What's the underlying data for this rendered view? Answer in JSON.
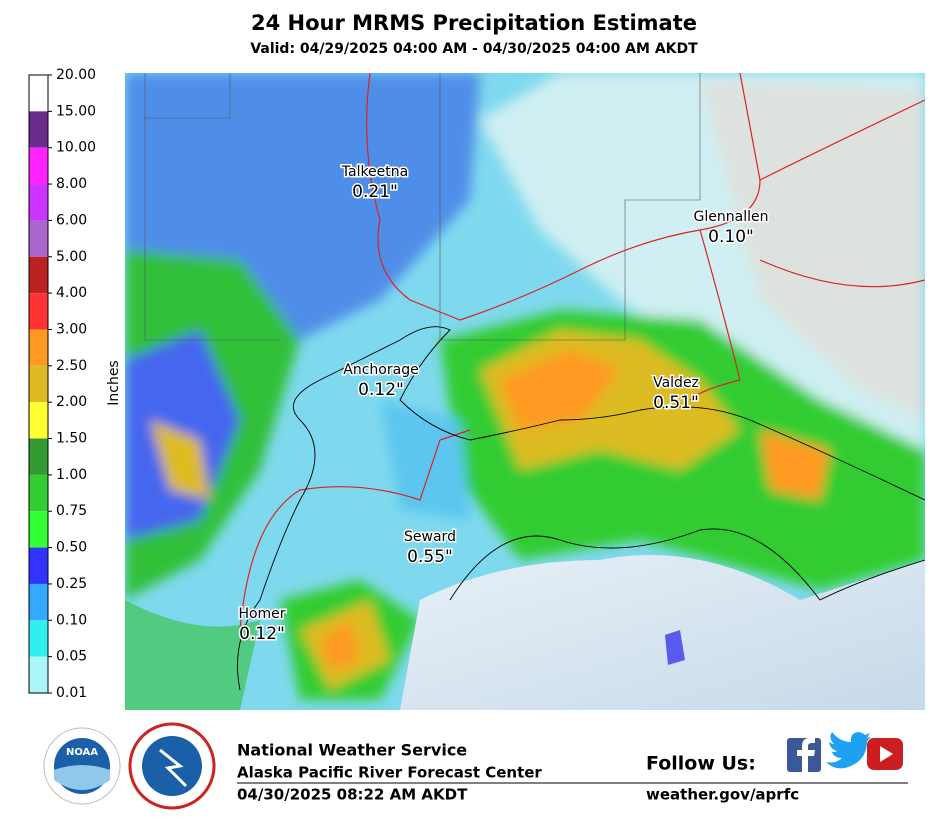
{
  "header": {
    "title": "24 Hour MRMS Precipitation Estimate",
    "subtitle": "Valid: 04/29/2025 04:00 AM - 04/30/2025 04:00 AM AKDT"
  },
  "legend": {
    "title": "Inches",
    "labels": [
      "20.00",
      "15.00",
      "10.00",
      "8.00",
      "6.00",
      "5.00",
      "4.00",
      "3.00",
      "2.50",
      "2.00",
      "1.50",
      "1.00",
      "0.75",
      "0.50",
      "0.25",
      "0.10",
      "0.05",
      "0.01"
    ],
    "colors": [
      "#ffffff",
      "#6a2c8c",
      "#ff22ff",
      "#cc33ff",
      "#aa66cc",
      "#bb2222",
      "#ff3333",
      "#ff9922",
      "#ddbb22",
      "#ffff33",
      "#339933",
      "#33cc33",
      "#33ff33",
      "#3333ff",
      "#33aaff",
      "#33eeee",
      "#aaf5f5"
    ]
  },
  "cities": [
    {
      "name": "Talkeetna",
      "value": "0.21\""
    },
    {
      "name": "Glennallen",
      "value": "0.10\""
    },
    {
      "name": "Anchorage",
      "value": "0.12\""
    },
    {
      "name": "Valdez",
      "value": "0.51\""
    },
    {
      "name": "Seward",
      "value": "0.55\""
    },
    {
      "name": "Homer",
      "value": "0.12\""
    }
  ],
  "footer": {
    "logo": "NOAA",
    "agency": "National Weather Service",
    "office": "Alaska Pacific River Forecast Center",
    "timestamp": "04/30/2025 08:22 AM AKDT",
    "follow": "Follow Us:",
    "url": "weather.gov/aprfc"
  }
}
